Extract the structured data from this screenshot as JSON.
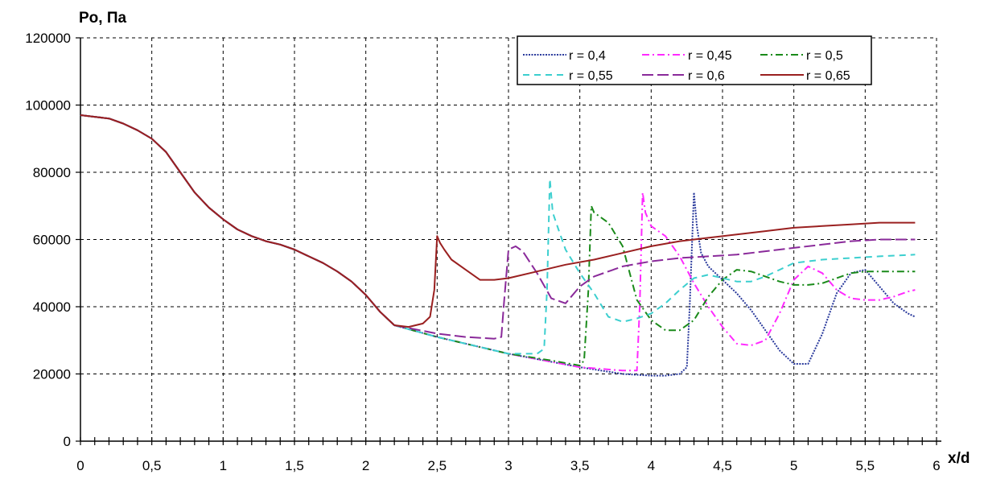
{
  "chart_data": {
    "type": "line",
    "title": "",
    "ylabel": "Po, Па",
    "xlabel": "x/d",
    "xlim": [
      0,
      6
    ],
    "ylim": [
      0,
      120000
    ],
    "x_ticks": [
      0,
      0.5,
      1,
      1.5,
      2,
      2.5,
      3,
      3.5,
      4,
      4.5,
      5,
      5.5,
      6
    ],
    "x_tick_labels": [
      "0",
      "0,5",
      "1",
      "1,5",
      "2",
      "2,5",
      "3",
      "3,5",
      "4",
      "4,5",
      "5",
      "5,5",
      "6"
    ],
    "y_ticks": [
      0,
      20000,
      40000,
      60000,
      80000,
      100000,
      120000
    ],
    "y_tick_labels": [
      "0",
      "20000",
      "40000",
      "60000",
      "80000",
      "100000",
      "120000"
    ],
    "grid": true,
    "legend_position": "top-right",
    "colors": {
      "r04": "#2a3a9c",
      "r045": "#ff2aff",
      "r05": "#1a8a1a",
      "r055": "#3ccfcf",
      "r06": "#8a2a9a",
      "r065": "#9a2020"
    },
    "common_curve": {
      "x": [
        0,
        0.1,
        0.2,
        0.3,
        0.4,
        0.5,
        0.6,
        0.7,
        0.8,
        0.9,
        1.0,
        1.1,
        1.2,
        1.3,
        1.4,
        1.5,
        1.6,
        1.7,
        1.8,
        1.9,
        2.0,
        2.1,
        2.2
      ],
      "y": [
        97000,
        96500,
        96000,
        94500,
        92500,
        90000,
        86000,
        80000,
        74000,
        69500,
        66000,
        63000,
        61000,
        59500,
        58500,
        57000,
        55000,
        53000,
        50500,
        47500,
        43500,
        38500,
        34500
      ]
    },
    "series": [
      {
        "name": "r = 0,4",
        "dash": "2,1.5",
        "x": [
          2.2,
          2.5,
          3.0,
          3.5,
          3.8,
          4.0,
          4.1,
          4.2,
          4.25,
          4.27,
          4.3,
          4.32,
          4.35,
          4.4,
          4.5,
          4.6,
          4.7,
          4.8,
          4.9,
          5.0,
          5.1,
          5.2,
          5.3,
          5.4,
          5.5,
          5.6,
          5.7,
          5.8,
          5.85
        ],
        "y": [
          34500,
          31000,
          26000,
          22000,
          20000,
          19500,
          19500,
          20000,
          22000,
          40000,
          74000,
          64000,
          56000,
          52000,
          48000,
          44000,
          39000,
          33000,
          27000,
          23000,
          23000,
          32000,
          44000,
          50000,
          51000,
          46000,
          41000,
          38000,
          37000
        ]
      },
      {
        "name": "r = 0,45",
        "dash": "9,4,2,4",
        "x": [
          2.2,
          2.5,
          3.0,
          3.5,
          3.8,
          3.9,
          3.92,
          3.94,
          3.96,
          4.0,
          4.1,
          4.2,
          4.3,
          4.4,
          4.5,
          4.6,
          4.7,
          4.8,
          4.9,
          5.0,
          5.1,
          5.2,
          5.3,
          5.4,
          5.5,
          5.6,
          5.7,
          5.8,
          5.85
        ],
        "y": [
          34500,
          31000,
          26000,
          22000,
          21000,
          21000,
          40000,
          74000,
          68000,
          64000,
          61000,
          55000,
          47000,
          40000,
          34000,
          29000,
          28500,
          30000,
          38000,
          48000,
          52000,
          50000,
          45000,
          42500,
          42000,
          42000,
          43000,
          44500,
          45000
        ]
      },
      {
        "name": "r = 0,5",
        "dash": "9,4,2,4",
        "x": [
          2.2,
          2.5,
          3.0,
          3.3,
          3.5,
          3.53,
          3.56,
          3.58,
          3.6,
          3.7,
          3.8,
          3.85,
          3.9,
          4.0,
          4.1,
          4.2,
          4.3,
          4.4,
          4.5,
          4.6,
          4.7,
          4.8,
          4.9,
          5.0,
          5.1,
          5.2,
          5.3,
          5.4,
          5.5,
          5.6,
          5.7,
          5.8,
          5.85
        ],
        "y": [
          34500,
          31000,
          26000,
          24000,
          22500,
          24000,
          45000,
          70000,
          68000,
          65000,
          58000,
          50000,
          42000,
          36000,
          33000,
          33000,
          36000,
          43000,
          48000,
          51000,
          50500,
          49000,
          47500,
          46500,
          46500,
          47000,
          48500,
          50000,
          50500,
          50500,
          50500,
          50500,
          50500
        ]
      },
      {
        "name": "r = 0,55",
        "dash": "8,6",
        "x": [
          2.2,
          2.5,
          3.0,
          3.2,
          3.25,
          3.27,
          3.29,
          3.31,
          3.35,
          3.4,
          3.5,
          3.6,
          3.7,
          3.8,
          3.9,
          4.0,
          4.1,
          4.2,
          4.3,
          4.4,
          4.5,
          4.6,
          4.7,
          4.8,
          4.9,
          5.0,
          5.2,
          5.4,
          5.6,
          5.85
        ],
        "y": [
          34500,
          31000,
          26000,
          26000,
          27500,
          45000,
          78000,
          68000,
          63000,
          57000,
          50000,
          44000,
          37000,
          35500,
          36500,
          38000,
          41000,
          45000,
          48500,
          49500,
          48500,
          47500,
          47500,
          49000,
          51000,
          53000,
          54000,
          54500,
          55000,
          55500
        ]
      },
      {
        "name": "r = 0,6",
        "dash": "14,5",
        "x": [
          2.2,
          2.5,
          2.7,
          2.9,
          2.95,
          2.97,
          3.0,
          3.05,
          3.1,
          3.2,
          3.3,
          3.4,
          3.5,
          3.6,
          3.7,
          3.8,
          4.0,
          4.2,
          4.4,
          4.6,
          4.8,
          5.0,
          5.2,
          5.4,
          5.6,
          5.85
        ],
        "y": [
          34500,
          32000,
          31000,
          30500,
          31000,
          42000,
          57000,
          58000,
          56500,
          50000,
          42500,
          41000,
          46000,
          49000,
          50500,
          52000,
          53500,
          54500,
          55000,
          55500,
          56500,
          57500,
          58500,
          59500,
          60000,
          60000
        ]
      },
      {
        "name": "r = 0,65",
        "dash": "",
        "x": [
          2.2,
          2.3,
          2.4,
          2.45,
          2.48,
          2.5,
          2.52,
          2.55,
          2.6,
          2.7,
          2.8,
          2.9,
          3.0,
          3.2,
          3.4,
          3.6,
          3.8,
          4.0,
          4.2,
          4.4,
          4.6,
          4.8,
          5.0,
          5.2,
          5.4,
          5.6,
          5.85
        ],
        "y": [
          34500,
          34000,
          35000,
          37000,
          45000,
          61000,
          59000,
          57000,
          54000,
          51000,
          48000,
          48000,
          48500,
          50500,
          52500,
          54000,
          56000,
          58000,
          59500,
          60500,
          61500,
          62500,
          63500,
          64000,
          64500,
          65000,
          65000
        ]
      }
    ]
  }
}
